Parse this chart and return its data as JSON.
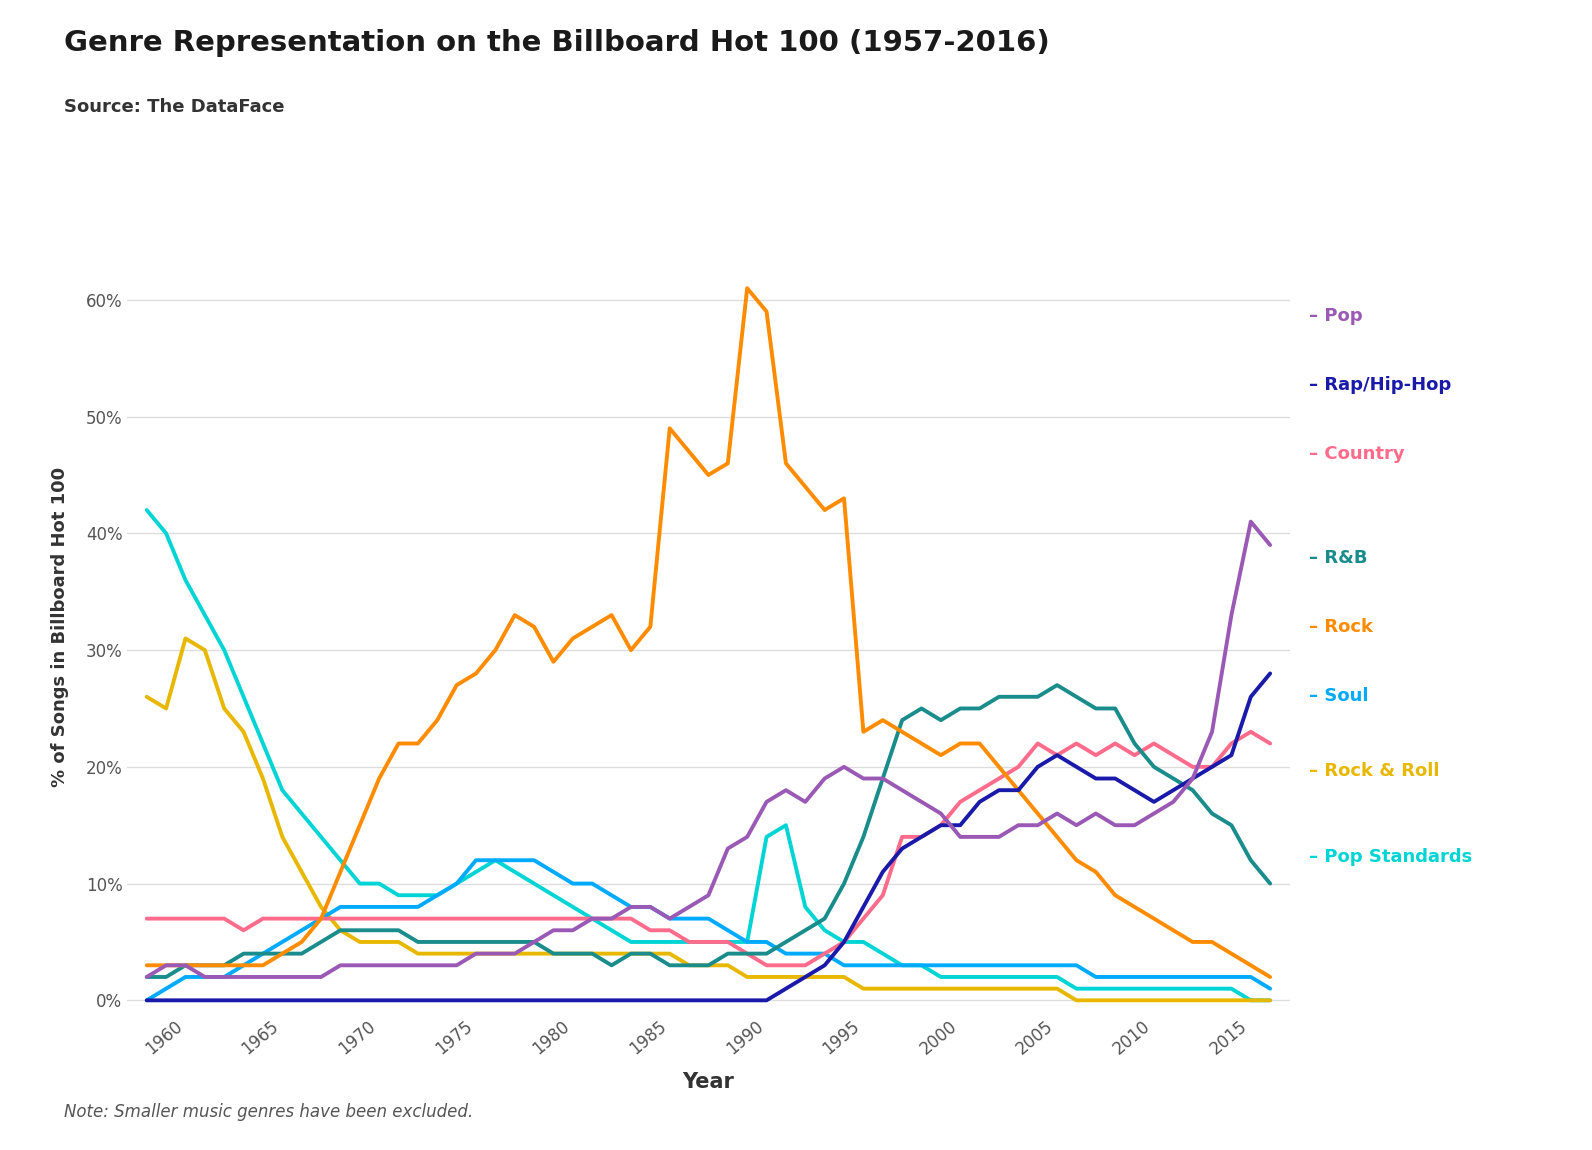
{
  "title": "Genre Representation on the Billboard Hot 100 (1957-2016)",
  "source": "Source: The DataFace",
  "note": "Note: Smaller music genres have been excluded.",
  "xlabel": "Year",
  "ylabel": "% of Songs in Billboard Hot 100",
  "background_color": "#ffffff",
  "years": [
    1958,
    1959,
    1960,
    1961,
    1962,
    1963,
    1964,
    1965,
    1966,
    1967,
    1968,
    1969,
    1970,
    1971,
    1972,
    1973,
    1974,
    1975,
    1976,
    1977,
    1978,
    1979,
    1980,
    1981,
    1982,
    1983,
    1984,
    1985,
    1986,
    1987,
    1988,
    1989,
    1990,
    1991,
    1992,
    1993,
    1994,
    1995,
    1996,
    1997,
    1998,
    1999,
    2000,
    2001,
    2002,
    2003,
    2004,
    2005,
    2006,
    2007,
    2008,
    2009,
    2010,
    2011,
    2012,
    2013,
    2014,
    2015,
    2016
  ],
  "genres": {
    "Rock": {
      "color": "#ff8c00",
      "data": [
        3,
        3,
        3,
        3,
        3,
        3,
        3,
        4,
        5,
        7,
        11,
        15,
        19,
        22,
        22,
        24,
        27,
        28,
        30,
        33,
        32,
        29,
        31,
        32,
        33,
        30,
        32,
        49,
        47,
        45,
        46,
        61,
        59,
        46,
        44,
        42,
        43,
        23,
        24,
        23,
        22,
        21,
        22,
        22,
        20,
        18,
        16,
        14,
        12,
        11,
        9,
        8,
        7,
        6,
        5,
        5,
        4,
        3,
        2
      ]
    },
    "Pop": {
      "color": "#9b59b6",
      "data": [
        2,
        3,
        3,
        2,
        2,
        2,
        2,
        2,
        2,
        2,
        3,
        3,
        3,
        3,
        3,
        3,
        3,
        4,
        4,
        4,
        5,
        6,
        6,
        7,
        7,
        8,
        8,
        7,
        8,
        9,
        13,
        14,
        17,
        18,
        17,
        19,
        20,
        19,
        19,
        18,
        17,
        16,
        14,
        14,
        14,
        15,
        15,
        16,
        15,
        16,
        15,
        15,
        16,
        17,
        19,
        23,
        33,
        41,
        39
      ]
    },
    "Country": {
      "color": "#ff6b8a",
      "data": [
        7,
        7,
        7,
        7,
        7,
        6,
        7,
        7,
        7,
        7,
        7,
        7,
        7,
        7,
        7,
        7,
        7,
        7,
        7,
        7,
        7,
        7,
        7,
        7,
        7,
        7,
        6,
        6,
        5,
        5,
        5,
        4,
        3,
        3,
        3,
        4,
        5,
        7,
        9,
        14,
        14,
        15,
        17,
        18,
        19,
        20,
        22,
        21,
        22,
        21,
        22,
        21,
        22,
        21,
        20,
        20,
        22,
        23,
        22
      ]
    },
    "R&B": {
      "color": "#1a8c8c",
      "data": [
        2,
        2,
        3,
        3,
        3,
        4,
        4,
        4,
        4,
        5,
        6,
        6,
        6,
        6,
        5,
        5,
        5,
        5,
        5,
        5,
        5,
        4,
        4,
        4,
        3,
        4,
        4,
        3,
        3,
        3,
        4,
        4,
        4,
        5,
        6,
        7,
        10,
        14,
        19,
        24,
        25,
        24,
        25,
        25,
        26,
        26,
        26,
        27,
        26,
        25,
        25,
        22,
        20,
        19,
        18,
        16,
        15,
        12,
        10
      ]
    },
    "Rap/Hip-Hop": {
      "color": "#1a1aaa",
      "data": [
        0,
        0,
        0,
        0,
        0,
        0,
        0,
        0,
        0,
        0,
        0,
        0,
        0,
        0,
        0,
        0,
        0,
        0,
        0,
        0,
        0,
        0,
        0,
        0,
        0,
        0,
        0,
        0,
        0,
        0,
        0,
        0,
        0,
        1,
        2,
        3,
        5,
        8,
        11,
        13,
        14,
        15,
        15,
        17,
        18,
        18,
        20,
        21,
        20,
        19,
        19,
        18,
        17,
        18,
        19,
        20,
        21,
        26,
        28
      ]
    },
    "Soul": {
      "color": "#00aaff",
      "data": [
        0,
        1,
        2,
        2,
        2,
        3,
        4,
        5,
        6,
        7,
        8,
        8,
        8,
        8,
        8,
        9,
        10,
        12,
        12,
        12,
        12,
        11,
        10,
        10,
        9,
        8,
        8,
        7,
        7,
        7,
        6,
        5,
        5,
        4,
        4,
        4,
        3,
        3,
        3,
        3,
        3,
        3,
        3,
        3,
        3,
        3,
        3,
        3,
        3,
        2,
        2,
        2,
        2,
        2,
        2,
        2,
        2,
        2,
        1
      ]
    },
    "Rock & Roll": {
      "color": "#e8b800",
      "data": [
        26,
        25,
        31,
        30,
        25,
        23,
        19,
        14,
        11,
        8,
        6,
        5,
        5,
        5,
        4,
        4,
        4,
        4,
        4,
        4,
        4,
        4,
        4,
        4,
        4,
        4,
        4,
        4,
        3,
        3,
        3,
        2,
        2,
        2,
        2,
        2,
        2,
        1,
        1,
        1,
        1,
        1,
        1,
        1,
        1,
        1,
        1,
        1,
        0,
        0,
        0,
        0,
        0,
        0,
        0,
        0,
        0,
        0,
        0
      ]
    },
    "Pop Standards": {
      "color": "#00d4d4",
      "data": [
        42,
        40,
        36,
        33,
        30,
        26,
        22,
        18,
        16,
        14,
        12,
        10,
        10,
        9,
        9,
        9,
        10,
        11,
        12,
        11,
        10,
        9,
        8,
        7,
        6,
        5,
        5,
        5,
        5,
        5,
        5,
        5,
        14,
        15,
        8,
        6,
        5,
        5,
        4,
        3,
        3,
        2,
        2,
        2,
        2,
        2,
        2,
        2,
        1,
        1,
        1,
        1,
        1,
        1,
        1,
        1,
        1,
        0,
        0
      ]
    }
  }
}
